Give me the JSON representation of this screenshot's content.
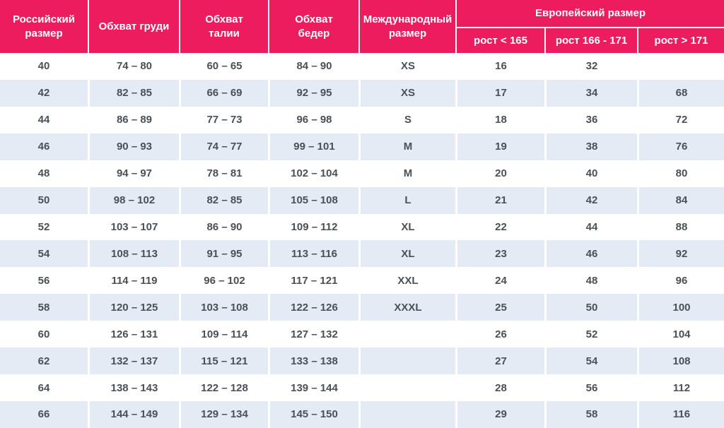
{
  "colors": {
    "accent": "#ED1C5E",
    "stripe": "#E4EBF5",
    "text": "#495057"
  },
  "table": {
    "headers": {
      "russian_size": "Российский размер",
      "chest": "Обхват груди",
      "waist": "Обхват талии",
      "hips": "Обхват бедер",
      "international_size": "Международный размер",
      "european_size": "Европейский размер",
      "height_lt_165": "рост < 165",
      "height_166_171": "рост 166 - 171",
      "height_gt_171": "рост > 171"
    },
    "rows": [
      [
        "40",
        "74 – 80",
        "60 – 65",
        "84 – 90",
        "XS",
        "16",
        "32",
        ""
      ],
      [
        "42",
        "82 – 85",
        "66 – 69",
        "92 – 95",
        "XS",
        "17",
        "34",
        "68"
      ],
      [
        "44",
        "86 – 89",
        "77 – 73",
        "96 – 98",
        "S",
        "18",
        "36",
        "72"
      ],
      [
        "46",
        "90 – 93",
        "74 – 77",
        "99 – 101",
        "M",
        "19",
        "38",
        "76"
      ],
      [
        "48",
        "94 – 97",
        "78 – 81",
        "102 – 104",
        "M",
        "20",
        "40",
        "80"
      ],
      [
        "50",
        "98 – 102",
        "82 – 85",
        "105 – 108",
        "L",
        "21",
        "42",
        "84"
      ],
      [
        "52",
        "103 – 107",
        "86 – 90",
        "109 – 112",
        "XL",
        "22",
        "44",
        "88"
      ],
      [
        "54",
        "108 – 113",
        "91 – 95",
        "113 – 116",
        "XL",
        "23",
        "46",
        "92"
      ],
      [
        "56",
        "114 – 119",
        "96 – 102",
        "117 – 121",
        "XXL",
        "24",
        "48",
        "96"
      ],
      [
        "58",
        "120 – 125",
        "103 – 108",
        "122 – 126",
        "XXXL",
        "25",
        "50",
        "100"
      ],
      [
        "60",
        "126 – 131",
        "109 – 114",
        "127 – 132",
        "",
        "26",
        "52",
        "104"
      ],
      [
        "62",
        "132 – 137",
        "115 – 121",
        "133 – 138",
        "",
        "27",
        "54",
        "108"
      ],
      [
        "64",
        "138 – 143",
        "122 – 128",
        "139 – 144",
        "",
        "28",
        "56",
        "112"
      ],
      [
        "66",
        "144 – 149",
        "129 – 134",
        "145 – 150",
        "",
        "29",
        "58",
        "116"
      ]
    ]
  }
}
